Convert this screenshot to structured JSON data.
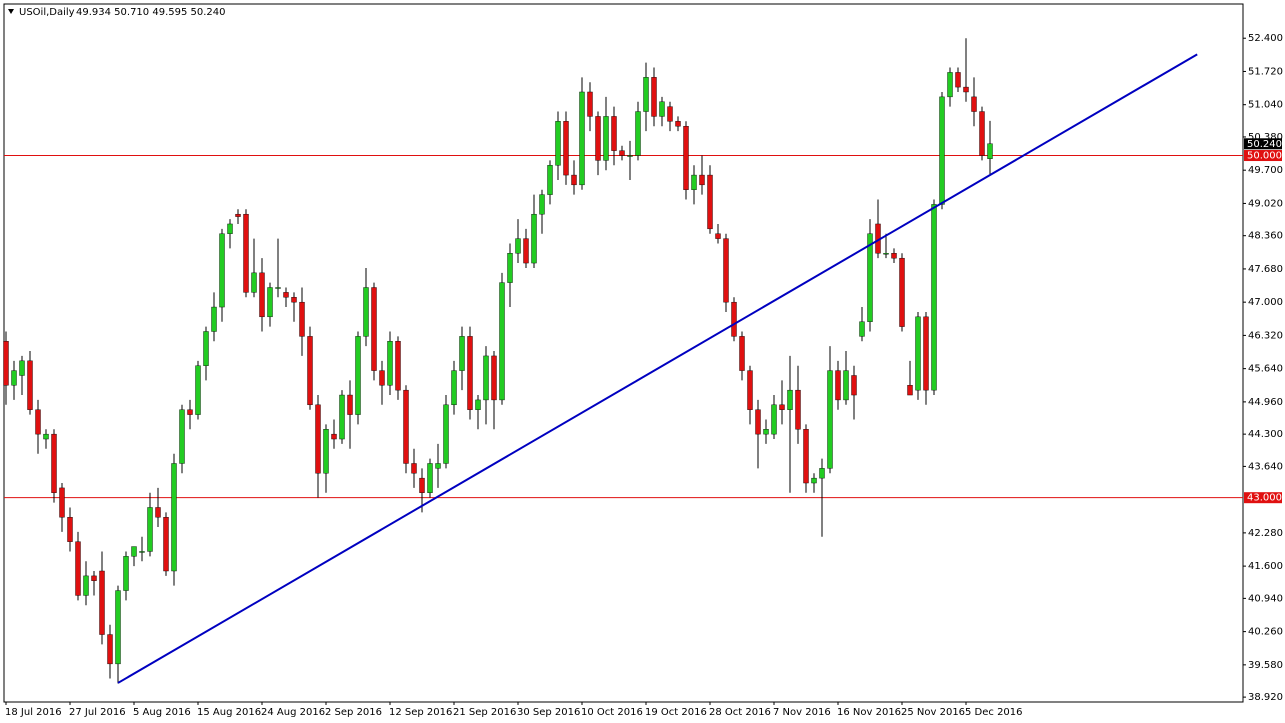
{
  "chart_data": {
    "type": "candlestick",
    "title": "USOil,Daily",
    "subtitle": "49.934 50.710 49.595 50.240",
    "categories": [
      "18 Jul 2016",
      null,
      null,
      null,
      null,
      null,
      null,
      null,
      "27 Jul 2016",
      null,
      null,
      null,
      null,
      null,
      null,
      null,
      "5 Aug 2016",
      null,
      null,
      null,
      null,
      null,
      null,
      null,
      "15 Aug 2016",
      null,
      null,
      null,
      null,
      null,
      null,
      null,
      "24 Aug 2016",
      null,
      null,
      null,
      null,
      null,
      null,
      null,
      "2 Sep 2016",
      null,
      null,
      null,
      null,
      null,
      null,
      null,
      "12 Sep 2016",
      null,
      null,
      null,
      null,
      null,
      null,
      null,
      "21 Sep 2016",
      null,
      null,
      null,
      null,
      null,
      null,
      null,
      "30 Sep 2016",
      null,
      null,
      null,
      null,
      null,
      null,
      null,
      "10 Oct 2016",
      null,
      null,
      null,
      null,
      null,
      null,
      null,
      "19 Oct 2016",
      null,
      null,
      null,
      null,
      null,
      null,
      null,
      "28 Oct 2016",
      null,
      null,
      null,
      null,
      null,
      null,
      null,
      "7 Nov 2016",
      null,
      null,
      null,
      null,
      null,
      null,
      null,
      "16 Nov 2016",
      null,
      null,
      null,
      null,
      null,
      null,
      null,
      "25 Nov 2016",
      null,
      null,
      null,
      null,
      null,
      null,
      null,
      "5 Dec 2016",
      null,
      null,
      null
    ],
    "open": [
      46.2,
      45.3,
      45.5,
      45.8,
      44.8,
      44.2,
      44.3,
      43.2,
      42.6,
      42.1,
      41.0,
      41.4,
      41.5,
      40.2,
      39.6,
      41.1,
      41.8,
      41.9,
      41.9,
      42.8,
      42.6,
      41.5,
      43.7,
      44.8,
      44.7,
      45.7,
      46.4,
      46.9,
      48.4,
      48.8,
      48.8,
      47.2,
      47.6,
      46.7,
      47.3,
      47.2,
      47.1,
      47.0,
      46.3,
      44.9,
      43.5,
      44.3,
      44.2,
      45.1,
      44.7,
      46.3,
      47.3,
      45.6,
      45.3,
      46.2,
      45.2,
      43.7,
      43.4,
      43.1,
      43.6,
      43.7,
      44.9,
      45.6,
      46.3,
      44.8,
      45.0,
      45.9,
      45.0,
      47.4,
      48.0,
      48.3,
      47.8,
      48.8,
      49.2,
      49.8,
      50.7,
      49.6,
      49.4,
      51.3,
      50.8,
      49.9,
      50.8,
      50.1,
      50.0,
      50.0,
      50.9,
      51.6,
      50.8,
      51.0,
      50.7,
      50.6,
      49.3,
      49.6,
      49.6,
      48.4,
      48.3,
      47.0,
      46.3,
      45.6,
      44.8,
      44.3,
      44.3,
      44.9,
      44.8,
      45.2,
      44.4,
      43.3,
      43.4,
      43.6,
      45.6,
      45.0,
      45.5,
      46.3,
      46.6,
      48.6,
      48.0,
      48.0,
      47.9,
      45.3,
      45.2,
      46.7,
      45.2,
      49.0,
      51.2,
      51.7,
      51.4,
      51.2,
      50.9,
      49.934
    ],
    "high": [
      46.4,
      45.8,
      45.9,
      46.0,
      45.0,
      44.4,
      44.4,
      43.3,
      42.8,
      42.3,
      41.7,
      41.5,
      41.9,
      40.4,
      41.2,
      41.9,
      42.0,
      42.2,
      43.1,
      43.2,
      42.7,
      43.9,
      44.9,
      45.0,
      45.8,
      46.5,
      47.2,
      48.5,
      48.7,
      48.9,
      48.9,
      48.3,
      47.9,
      47.4,
      48.3,
      47.3,
      47.2,
      47.3,
      46.5,
      45.1,
      44.5,
      44.6,
      45.2,
      45.4,
      46.4,
      47.7,
      47.4,
      45.8,
      46.4,
      46.3,
      45.3,
      44.0,
      43.6,
      43.8,
      44.1,
      45.1,
      45.8,
      46.5,
      46.5,
      45.1,
      46.1,
      46.0,
      47.6,
      48.2,
      48.7,
      48.5,
      49.2,
      49.3,
      49.9,
      50.9,
      50.9,
      49.9,
      51.6,
      51.5,
      50.9,
      51.2,
      51.0,
      50.2,
      50.3,
      51.1,
      51.9,
      51.8,
      51.2,
      51.1,
      50.8,
      50.7,
      49.8,
      50.0,
      49.8,
      48.6,
      48.4,
      47.1,
      46.4,
      45.7,
      45.0,
      44.6,
      45.1,
      45.4,
      45.9,
      45.7,
      44.5,
      43.5,
      43.8,
      46.1,
      45.8,
      46.0,
      45.7,
      46.9,
      48.7,
      49.1,
      48.4,
      48.1,
      48.0,
      45.8,
      46.8,
      46.8,
      49.1,
      51.3,
      51.8,
      51.8,
      52.4,
      51.6,
      51.0,
      50.71
    ],
    "low": [
      44.9,
      45.0,
      45.1,
      44.7,
      43.9,
      44.0,
      42.9,
      42.3,
      41.9,
      40.9,
      40.8,
      41.0,
      40.0,
      39.3,
      39.2,
      40.9,
      41.6,
      41.7,
      41.8,
      42.4,
      41.4,
      41.2,
      43.5,
      44.4,
      44.6,
      45.4,
      46.2,
      46.6,
      48.1,
      48.6,
      47.1,
      47.1,
      46.4,
      46.5,
      47.1,
      46.9,
      46.6,
      45.9,
      44.8,
      43.0,
      43.1,
      44.0,
      44.1,
      44.0,
      44.5,
      46.1,
      45.4,
      44.9,
      45.1,
      45.0,
      43.5,
      43.2,
      42.7,
      43.0,
      43.2,
      43.6,
      44.7,
      45.2,
      44.6,
      44.4,
      44.5,
      44.4,
      44.9,
      46.9,
      47.8,
      47.7,
      47.7,
      48.4,
      49.0,
      49.5,
      49.4,
      49.2,
      49.3,
      50.5,
      49.6,
      49.7,
      49.8,
      49.9,
      49.5,
      49.9,
      50.5,
      50.6,
      50.6,
      50.5,
      50.5,
      49.1,
      49.0,
      49.2,
      48.4,
      48.2,
      46.8,
      46.2,
      45.4,
      44.5,
      43.6,
      44.1,
      44.2,
      44.5,
      43.1,
      44.1,
      43.1,
      43.1,
      42.2,
      43.5,
      44.8,
      44.9,
      44.6,
      46.2,
      46.4,
      47.9,
      47.9,
      47.8,
      46.4,
      45.1,
      45.0,
      44.9,
      45.1,
      48.9,
      51.0,
      51.3,
      51.1,
      50.6,
      49.9,
      49.595
    ],
    "close": [
      45.3,
      45.6,
      45.8,
      44.8,
      44.3,
      44.3,
      43.1,
      42.6,
      42.1,
      41.0,
      41.4,
      41.3,
      40.2,
      39.6,
      41.1,
      41.8,
      42.0,
      41.9,
      42.8,
      42.6,
      41.5,
      43.7,
      44.8,
      44.7,
      45.7,
      46.4,
      46.9,
      48.4,
      48.6,
      48.75,
      47.2,
      47.6,
      46.7,
      47.3,
      47.3,
      47.1,
      47.0,
      46.3,
      44.9,
      43.5,
      44.4,
      44.2,
      45.1,
      44.7,
      46.3,
      47.3,
      45.6,
      45.3,
      46.2,
      45.2,
      43.7,
      43.5,
      43.1,
      43.7,
      43.7,
      44.9,
      45.6,
      46.3,
      44.8,
      45.0,
      45.9,
      45.0,
      47.4,
      48.0,
      48.3,
      47.8,
      48.8,
      49.2,
      49.8,
      50.7,
      49.6,
      49.4,
      51.3,
      50.8,
      49.9,
      50.8,
      50.1,
      50.0,
      50.0,
      50.9,
      51.6,
      50.8,
      51.1,
      50.7,
      50.6,
      49.3,
      49.6,
      49.4,
      48.5,
      48.3,
      47.0,
      46.3,
      45.6,
      44.8,
      44.3,
      44.4,
      44.9,
      44.8,
      45.2,
      44.4,
      43.3,
      43.4,
      43.6,
      45.6,
      45.0,
      45.6,
      45.1,
      46.6,
      48.4,
      48.0,
      48.0,
      47.9,
      46.5,
      45.1,
      46.7,
      45.2,
      49.0,
      51.2,
      51.7,
      51.4,
      51.3,
      50.9,
      50.0,
      50.24
    ],
    "up_color": "#22cc22",
    "down_color": "#e01010",
    "wick_color": "#000000",
    "ylim": [
      38.82,
      53.1
    ],
    "yticks": [
      {
        "value": 52.4,
        "label": "52.400"
      },
      {
        "value": 51.72,
        "label": "51.720"
      },
      {
        "value": 51.04,
        "label": "51.040"
      },
      {
        "value": 50.38,
        "label": "50.380"
      },
      {
        "value": 49.7,
        "label": "49.700"
      },
      {
        "value": 49.02,
        "label": "49.020"
      },
      {
        "value": 48.36,
        "label": "48.360"
      },
      {
        "value": 47.68,
        "label": "47.680"
      },
      {
        "value": 47,
        "label": "47.000"
      },
      {
        "value": 46.32,
        "label": "46.320"
      },
      {
        "value": 45.64,
        "label": "45.640"
      },
      {
        "value": 44.96,
        "label": "44.960"
      },
      {
        "value": 44.3,
        "label": "44.300"
      },
      {
        "value": 43.64,
        "label": "43.640"
      },
      {
        "value": 42.28,
        "label": "42.280"
      },
      {
        "value": 41.6,
        "label": "41.600"
      },
      {
        "value": 40.94,
        "label": "40.940"
      },
      {
        "value": 40.26,
        "label": "40.260"
      },
      {
        "value": 39.58,
        "label": "39.580"
      },
      {
        "value": 38.92,
        "label": "38.920"
      }
    ],
    "grid": false,
    "hlines": [
      {
        "value": 50,
        "label": "50.000",
        "color": "#e01010"
      },
      {
        "value": 43,
        "label": "43.000",
        "color": "#e01010"
      }
    ],
    "last_price_label": "50.240",
    "trendline": {
      "x": [
        14,
        148.9
      ],
      "y": [
        39.21,
        52.07
      ],
      "color": "#0000c0"
    }
  }
}
